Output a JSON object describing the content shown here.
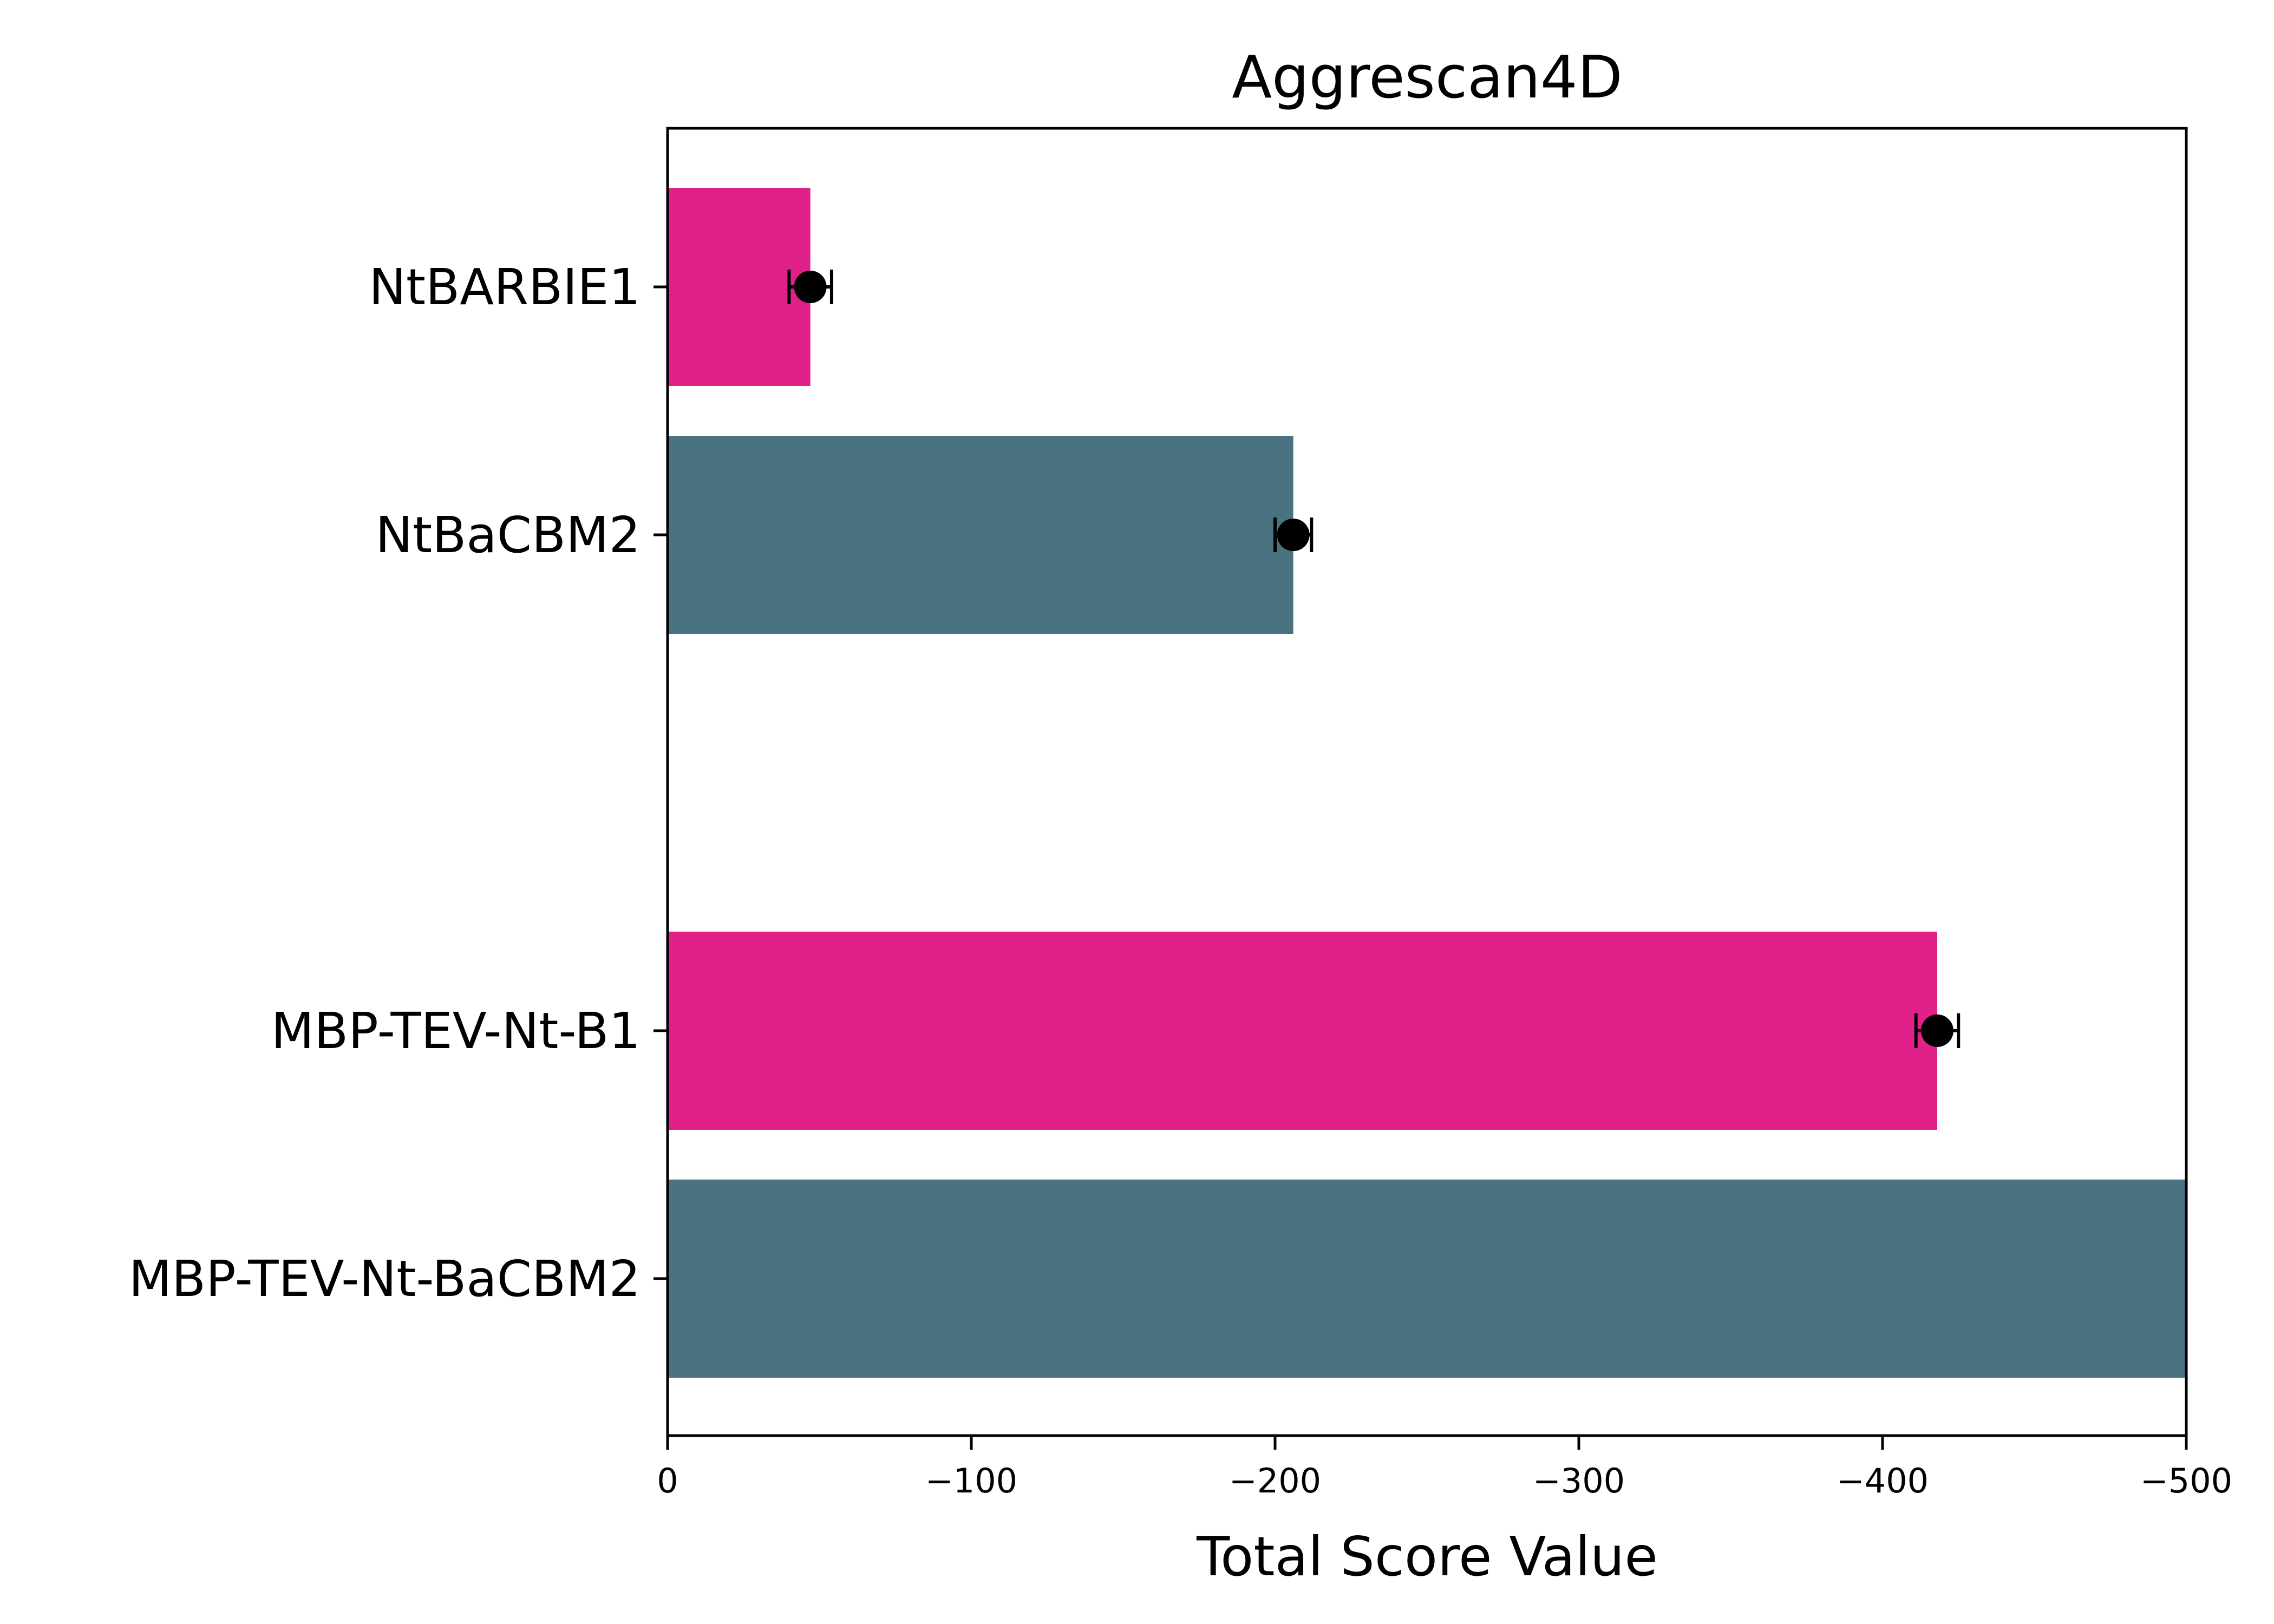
{
  "chart_data": {
    "type": "bar",
    "orientation": "horizontal",
    "title": "Aggrescan4D",
    "xlabel": "Total Score Value",
    "ylabel": "",
    "xlim": [
      0,
      -500
    ],
    "x_axis_inverted": true,
    "xticks": [
      0,
      -100,
      -200,
      -300,
      -400,
      -500
    ],
    "xtick_labels": [
      "0",
      "−100",
      "−200",
      "−300",
      "−400",
      "−500"
    ],
    "grid": false,
    "categories": [
      {
        "label": "NtBARBIE1",
        "value": -47,
        "error": 7,
        "color": "#e0218a",
        "marker": true
      },
      {
        "label": "NtBaCBM2",
        "value": -206,
        "error": 6,
        "color": "#4a7280",
        "marker": true
      },
      {
        "label": "",
        "gap": true
      },
      {
        "label": "MBP-TEV-Nt-B1",
        "value": -418,
        "error": 7,
        "color": "#e0218a",
        "marker": true
      },
      {
        "label": "MBP-TEV-Nt-BaCBM2",
        "value": -500,
        "color": "#4a7280",
        "marker": false
      }
    ]
  }
}
